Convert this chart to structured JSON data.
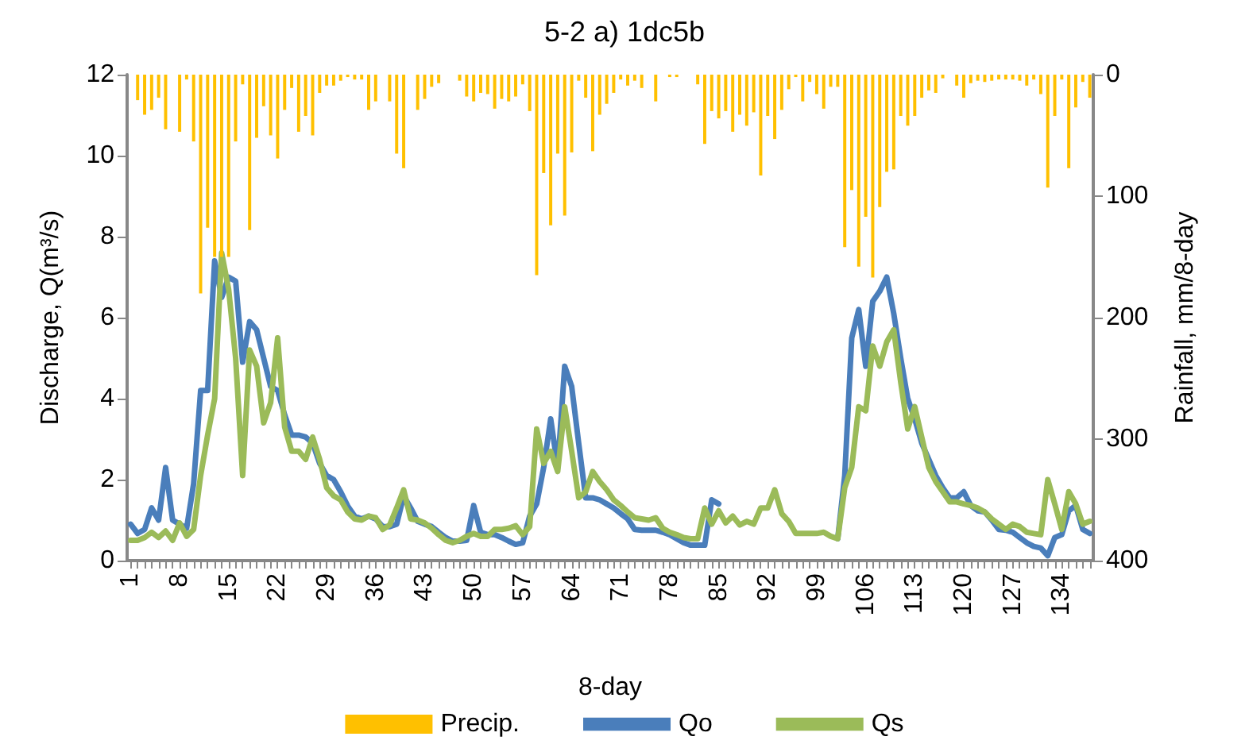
{
  "chart_data": {
    "type": "line",
    "title": "5-2 a) 1dc5b",
    "xlabel": "8-day",
    "ylabel": "Discharge, Q(m³/s)",
    "y2label": "Rainfall, mm/8-day",
    "categories": [
      "1",
      null,
      null,
      null,
      null,
      null,
      null,
      "8",
      null,
      null,
      null,
      null,
      null,
      null,
      "15",
      null,
      null,
      null,
      null,
      null,
      null,
      "22",
      null,
      null,
      null,
      null,
      null,
      null,
      "29",
      null,
      null,
      null,
      null,
      null,
      null,
      "36",
      null,
      null,
      null,
      null,
      null,
      null,
      "43",
      null,
      null,
      null,
      null,
      null,
      null,
      "50",
      null,
      null,
      null,
      null,
      null,
      null,
      "57",
      null,
      null,
      null,
      null,
      null,
      null,
      "64",
      null,
      null,
      null,
      null,
      null,
      null,
      "71",
      null,
      null,
      null,
      null,
      null,
      null,
      "78",
      null,
      null,
      null,
      null,
      null,
      null,
      "85",
      null,
      null,
      null,
      null,
      null,
      null,
      "92",
      null,
      null,
      null,
      null,
      null,
      null,
      "99",
      null,
      null,
      null,
      null,
      null,
      null,
      "106",
      null,
      null,
      null,
      null,
      null,
      null,
      "113",
      null,
      null,
      null,
      null,
      null,
      null,
      "120",
      null,
      null,
      null,
      null,
      null,
      null,
      "127",
      null,
      null,
      null,
      null,
      null,
      null,
      "134",
      null,
      null,
      null,
      null
    ],
    "series": [
      {
        "name": "Precip.",
        "type": "bar",
        "axis": "y2",
        "color": "#ffc000",
        "values": [
          0,
          21,
          33,
          29,
          19,
          45,
          0,
          47,
          4,
          55,
          180,
          126,
          150,
          150,
          150,
          55,
          8,
          128,
          52,
          26,
          50,
          69,
          29,
          11,
          47,
          34,
          50,
          15,
          9,
          9,
          5,
          2,
          4,
          4,
          29,
          22,
          0,
          22,
          65,
          77,
          0,
          29,
          20,
          10,
          7,
          0,
          0,
          5,
          18,
          22,
          15,
          16,
          28,
          20,
          22,
          18,
          8,
          30,
          165,
          81,
          124,
          65,
          116,
          64,
          5,
          19,
          63,
          33,
          24,
          15,
          4,
          9,
          5,
          11,
          0,
          22,
          0,
          2,
          2,
          0,
          0,
          8,
          57,
          30,
          36,
          30,
          47,
          33,
          42,
          31,
          83,
          34,
          53,
          29,
          12,
          2,
          22,
          6,
          16,
          28,
          10,
          10,
          142,
          95,
          158,
          117,
          167,
          109,
          80,
          78,
          34,
          42,
          34,
          19,
          13,
          15,
          3,
          0,
          9,
          19,
          7,
          5,
          6,
          5,
          4,
          4,
          4,
          5,
          9,
          4,
          16,
          93,
          34,
          4,
          77,
          27,
          6,
          19
        ]
      },
      {
        "name": "Qo",
        "axis": "y",
        "color": "#4a7ebb",
        "values": [
          0.9,
          0.67,
          0.77,
          1.3,
          1.0,
          2.3,
          1.0,
          0.9,
          0.8,
          1.9,
          4.2,
          4.2,
          7.4,
          6.5,
          7.0,
          6.9,
          4.9,
          5.9,
          5.7,
          5.0,
          4.3,
          4.2,
          3.6,
          3.1,
          3.1,
          3.05,
          2.9,
          2.4,
          2.1,
          2.0,
          1.7,
          1.35,
          1.1,
          1.03,
          1.1,
          1.03,
          0.84,
          0.84,
          0.9,
          1.6,
          1.3,
          0.97,
          0.9,
          0.84,
          0.7,
          0.57,
          0.48,
          0.48,
          0.5,
          1.36,
          0.7,
          0.64,
          0.64,
          0.57,
          0.48,
          0.4,
          0.44,
          1.1,
          1.4,
          2.3,
          3.5,
          2.3,
          4.8,
          4.3,
          2.9,
          1.55,
          1.55,
          1.5,
          1.4,
          1.3,
          1.16,
          1.03,
          0.77,
          0.75,
          0.75,
          0.75,
          0.7,
          0.64,
          0.54,
          0.44,
          0.38,
          0.38,
          0.38,
          1.5,
          1.4,
          null,
          null,
          null,
          null,
          null,
          null,
          null,
          null,
          null,
          null,
          null,
          null,
          null,
          null,
          null,
          null,
          0.54,
          2.1,
          5.5,
          6.2,
          4.8,
          6.4,
          6.65,
          7.0,
          6.1,
          5.0,
          4.0,
          3.5,
          2.9,
          2.5,
          2.1,
          1.8,
          1.55,
          1.55,
          1.7,
          1.36,
          1.23,
          1.2,
          1.0,
          0.77,
          0.75,
          0.7,
          0.57,
          0.44,
          0.35,
          0.31,
          0.12,
          0.57,
          0.64,
          1.23,
          1.36,
          0.77,
          0.67
        ]
      },
      {
        "name": "Qs",
        "axis": "y",
        "color": "#9bbb59",
        "values": [
          0.5,
          0.5,
          0.57,
          0.7,
          0.57,
          0.73,
          0.5,
          0.93,
          0.6,
          0.77,
          2.1,
          3.1,
          4.0,
          7.6,
          6.7,
          5.0,
          2.1,
          5.2,
          4.8,
          3.4,
          3.9,
          5.5,
          3.3,
          2.7,
          2.7,
          2.5,
          3.05,
          2.5,
          1.8,
          1.6,
          1.5,
          1.2,
          1.03,
          1.0,
          1.1,
          1.06,
          0.77,
          0.88,
          1.3,
          1.75,
          1.03,
          1.0,
          0.93,
          0.8,
          0.64,
          0.5,
          0.44,
          0.5,
          0.6,
          0.67,
          0.6,
          0.6,
          0.77,
          0.77,
          0.8,
          0.86,
          0.64,
          0.84,
          3.25,
          2.4,
          2.7,
          2.2,
          3.8,
          2.7,
          1.55,
          1.7,
          2.2,
          1.95,
          1.75,
          1.5,
          1.36,
          1.2,
          1.06,
          1.03,
          1.0,
          1.06,
          0.8,
          0.7,
          0.64,
          0.57,
          0.54,
          0.54,
          1.3,
          0.9,
          1.23,
          0.93,
          1.1,
          0.88,
          0.97,
          0.9,
          1.3,
          1.3,
          1.75,
          1.16,
          0.97,
          0.67,
          0.67,
          0.67,
          0.67,
          0.7,
          0.6,
          0.54,
          1.8,
          2.3,
          3.8,
          3.7,
          5.3,
          4.8,
          5.4,
          5.7,
          4.4,
          3.25,
          3.8,
          3.05,
          2.3,
          1.95,
          1.7,
          1.45,
          1.45,
          1.4,
          1.36,
          1.3,
          1.2,
          1.03,
          0.9,
          0.77,
          0.9,
          0.84,
          0.7,
          0.67,
          0.64,
          2.0,
          1.4,
          0.77,
          1.7,
          1.4,
          0.9,
          0.97
        ]
      }
    ],
    "ylim": [
      0,
      12
    ],
    "yticks": [
      0,
      2,
      4,
      6,
      8,
      10,
      12
    ],
    "y2lim": [
      400,
      0
    ],
    "y2ticks": [
      0,
      100,
      200,
      300,
      400
    ],
    "grid": false,
    "legend": "bottom",
    "marker": "none",
    "line_style": "solid"
  }
}
